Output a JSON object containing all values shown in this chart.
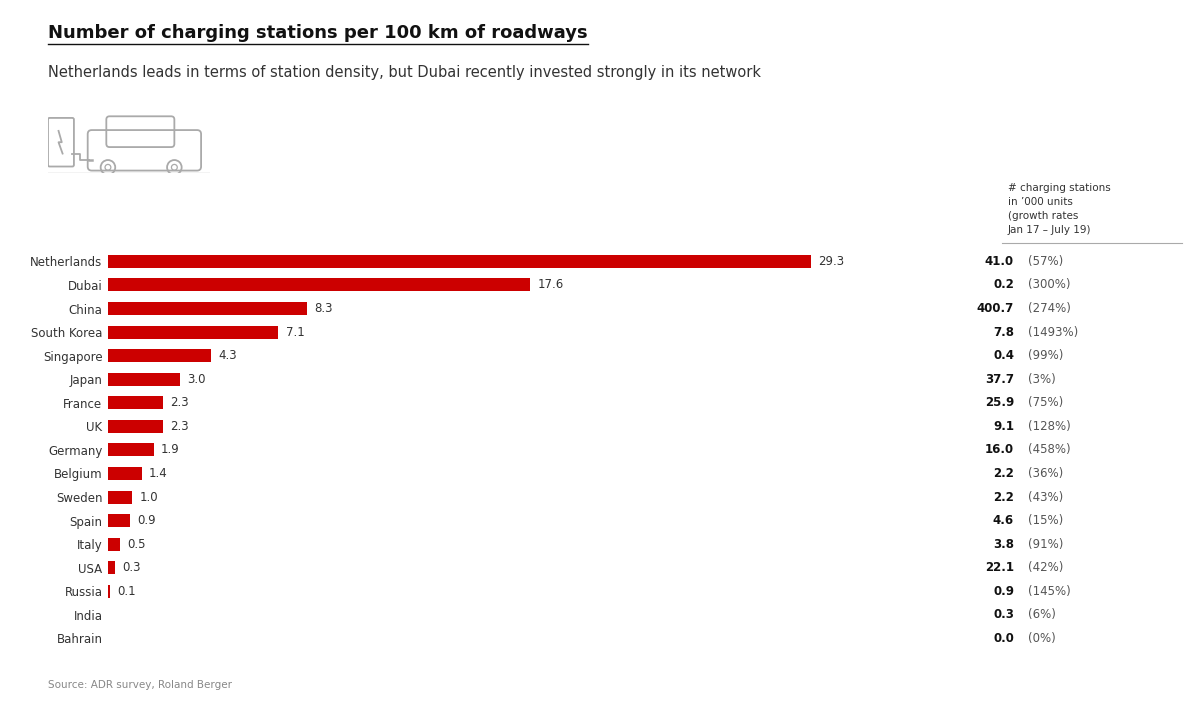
{
  "title": "Number of charging stations per 100 km of roadways",
  "subtitle": "Netherlands leads in terms of station density, but Dubai recently invested strongly in its network",
  "source": "Source: ADR survey, Roland Berger",
  "header_label": "# charging stations\nin ’000 units\n(growth rates\nJan 17 – July 19)",
  "countries": [
    "Netherlands",
    "Dubai",
    "China",
    "South Korea",
    "Singapore",
    "Japan",
    "France",
    "UK",
    "Germany",
    "Belgium",
    "Sweden",
    "Spain",
    "Italy",
    "USA",
    "Russia",
    "India",
    "Bahrain"
  ],
  "values": [
    29.3,
    17.6,
    8.3,
    7.1,
    4.3,
    3.0,
    2.3,
    2.3,
    1.9,
    1.4,
    1.0,
    0.9,
    0.5,
    0.3,
    0.1,
    0.0,
    0.0
  ],
  "stations": [
    "41.0",
    "0.2",
    "400.7",
    "7.8",
    "0.4",
    "37.7",
    "25.9",
    "9.1",
    "16.0",
    "2.2",
    "2.2",
    "4.6",
    "3.8",
    "22.1",
    "0.9",
    "0.3",
    "0.0"
  ],
  "growth": [
    "(57%)",
    "(300%)",
    "(274%)",
    "(1493%)",
    "(99%)",
    "(3%)",
    "(75%)",
    "(128%)",
    "(458%)",
    "(36%)",
    "(43%)",
    "(15%)",
    "(91%)",
    "(42%)",
    "(145%)",
    "(6%)",
    "(0%)"
  ],
  "bar_color": "#cc0000",
  "background_color": "#ffffff",
  "title_fontsize": 13,
  "subtitle_fontsize": 10.5,
  "bar_label_fontsize": 8.5,
  "axis_label_fontsize": 8.5,
  "annotation_fontsize": 8.5
}
